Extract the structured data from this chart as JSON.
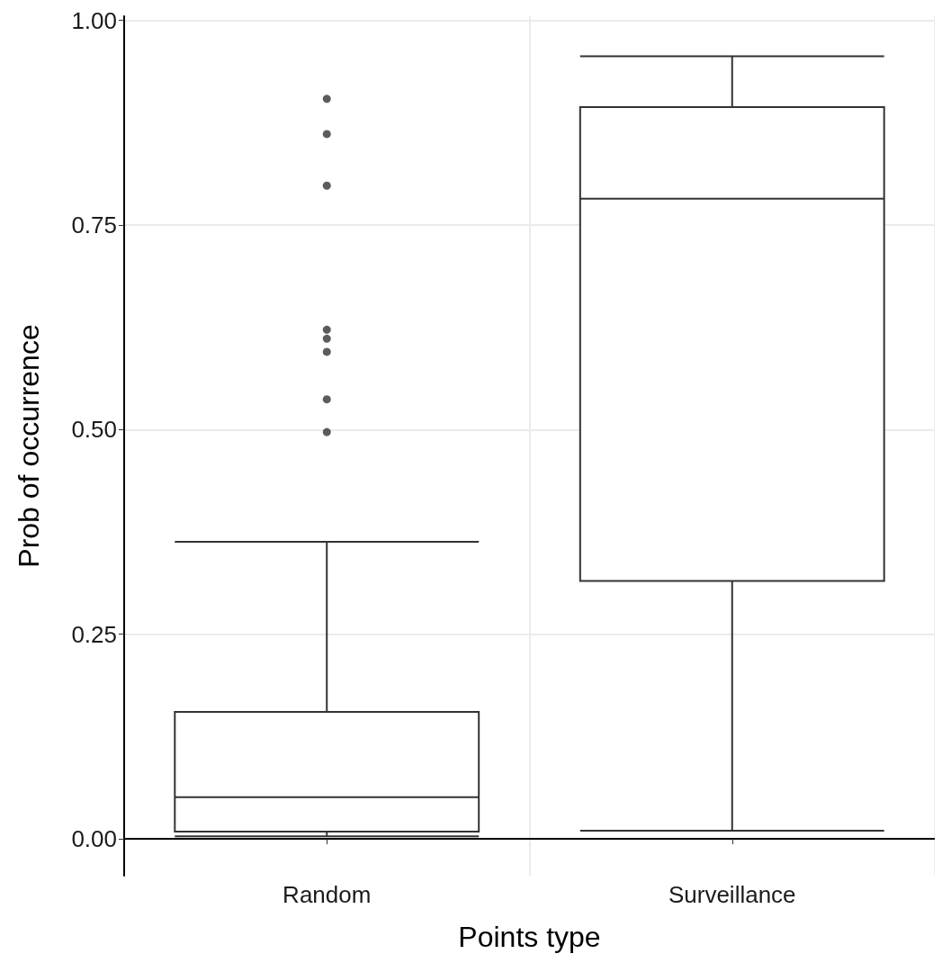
{
  "chart_data": {
    "type": "box",
    "xlabel": "Points type",
    "ylabel": "Prob of occurrence",
    "categories": [
      "Random",
      "Surveillance"
    ],
    "boxes": [
      {
        "low": 0.003,
        "q1": 0.009,
        "median": 0.051,
        "q3": 0.155,
        "high": 0.363,
        "outliers": [
          0.904,
          0.861,
          0.798,
          0.622,
          0.611,
          0.595,
          0.537,
          0.497
        ]
      },
      {
        "low": 0.01,
        "q1": 0.315,
        "median": 0.782,
        "q3": 0.894,
        "high": 0.956
      }
    ],
    "color": "#333333",
    "ylim": [
      -0.045,
      1.005
    ],
    "yticks": [
      {
        "value": 0,
        "label": "0.00"
      },
      {
        "value": 0.25,
        "label": "0.25"
      },
      {
        "value": 0.5,
        "label": "0.50"
      },
      {
        "value": 0.75,
        "label": "0.75"
      },
      {
        "value": 1,
        "label": "1.00"
      }
    ],
    "grid": true
  }
}
